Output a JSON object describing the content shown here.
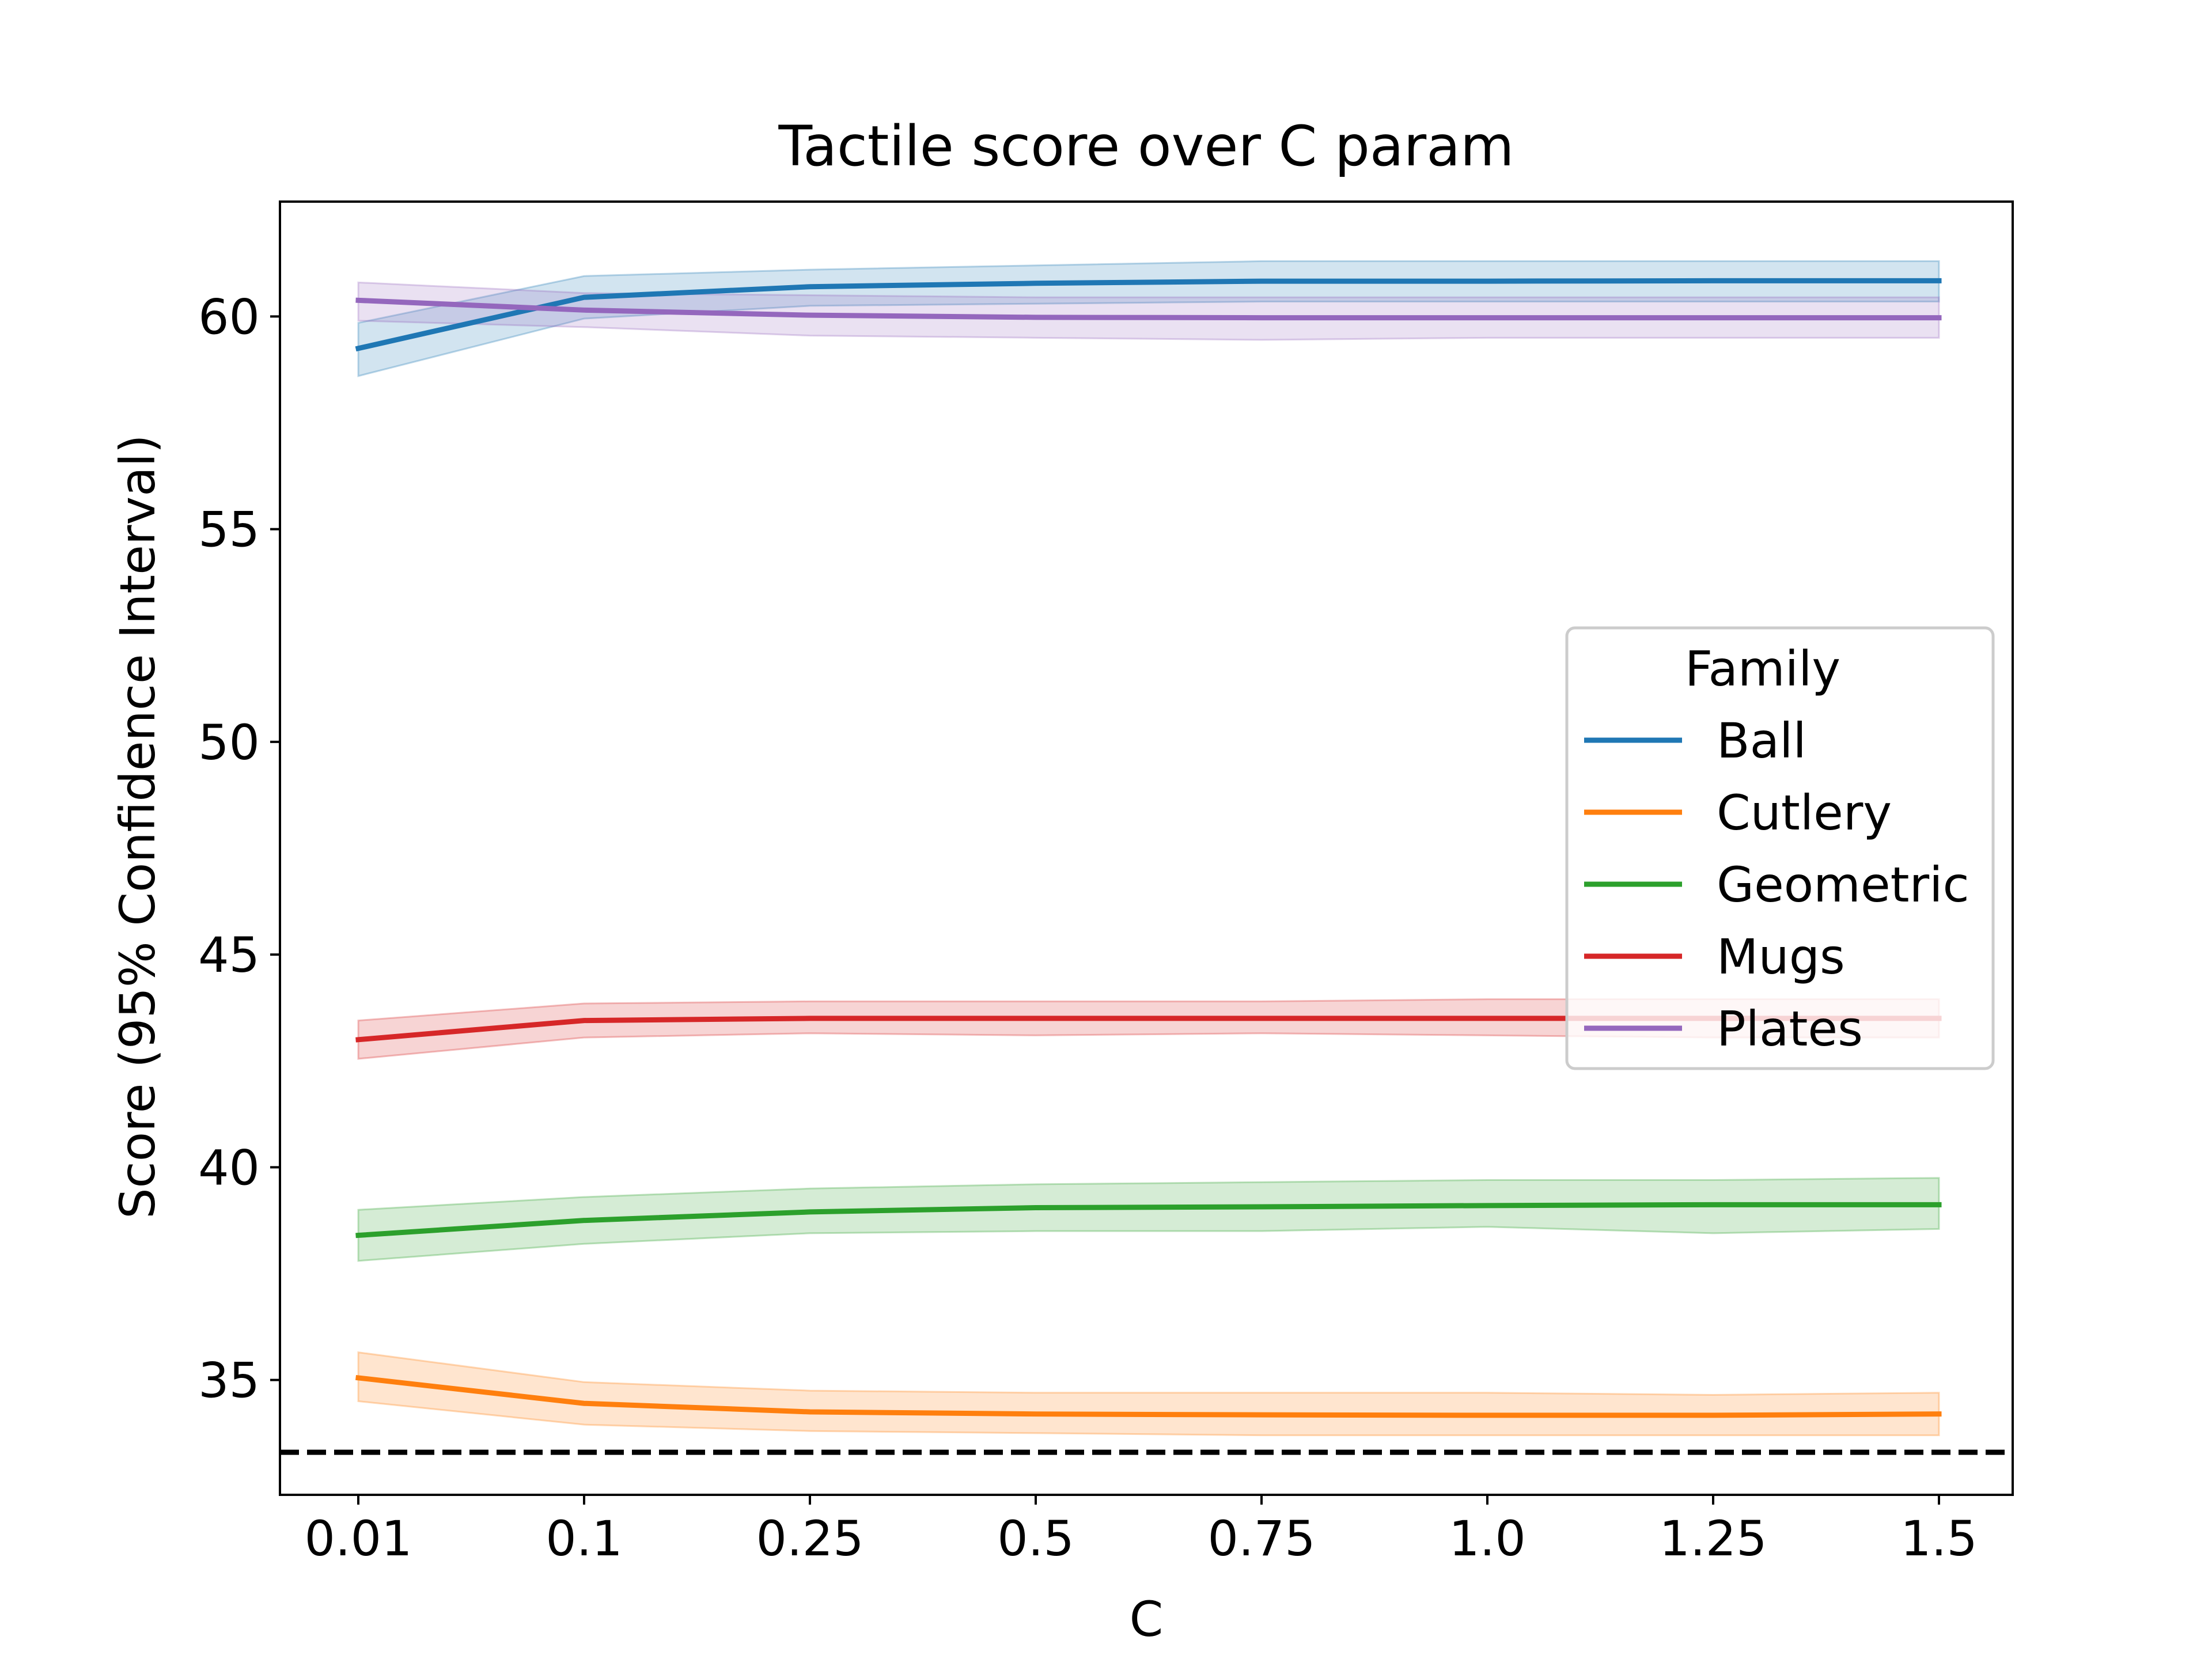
{
  "chart_data": {
    "type": "line",
    "title": "Tactile score over C param",
    "xlabel": "C",
    "ylabel": "Score (95% Confidence Interval)",
    "categories": [
      "0.01",
      "0.1",
      "0.25",
      "0.5",
      "0.75",
      "1.0",
      "1.25",
      "1.5"
    ],
    "ylim": [
      32.3,
      62.7
    ],
    "yticks": [
      35,
      40,
      45,
      50,
      55,
      60
    ],
    "grid": false,
    "legend": {
      "title": "Family",
      "placement": "center-right"
    },
    "reference_line": {
      "y": 33.3,
      "style": "dashed",
      "color": "#000000"
    },
    "series": [
      {
        "name": "Ball",
        "color": "#1f77b4",
        "values": [
          59.25,
          60.45,
          60.7,
          60.78,
          60.83,
          60.83,
          60.84,
          60.84
        ],
        "lower": [
          58.6,
          59.95,
          60.25,
          60.3,
          60.35,
          60.35,
          60.35,
          60.35
        ],
        "upper": [
          59.85,
          60.95,
          61.1,
          61.2,
          61.3,
          61.3,
          61.3,
          61.3
        ]
      },
      {
        "name": "Cutlery",
        "color": "#ff7f0e",
        "values": [
          35.05,
          34.45,
          34.25,
          34.2,
          34.18,
          34.17,
          34.17,
          34.2
        ],
        "lower": [
          34.5,
          33.95,
          33.8,
          33.75,
          33.7,
          33.7,
          33.7,
          33.7
        ],
        "upper": [
          35.65,
          34.95,
          34.75,
          34.7,
          34.7,
          34.7,
          34.65,
          34.7
        ]
      },
      {
        "name": "Geometric",
        "color": "#2ca02c",
        "values": [
          38.4,
          38.75,
          38.95,
          39.05,
          39.07,
          39.1,
          39.12,
          39.12
        ],
        "lower": [
          37.8,
          38.2,
          38.45,
          38.5,
          38.5,
          38.6,
          38.45,
          38.55
        ],
        "upper": [
          39.0,
          39.3,
          39.5,
          39.6,
          39.65,
          39.7,
          39.7,
          39.75
        ]
      },
      {
        "name": "Mugs",
        "color": "#d62728",
        "values": [
          43.0,
          43.45,
          43.5,
          43.5,
          43.5,
          43.5,
          43.5,
          43.5
        ],
        "lower": [
          42.55,
          43.05,
          43.15,
          43.1,
          43.15,
          43.1,
          43.05,
          43.05
        ],
        "upper": [
          43.45,
          43.85,
          43.9,
          43.9,
          43.9,
          43.95,
          43.95,
          43.95
        ]
      },
      {
        "name": "Plates",
        "color": "#9467bd",
        "values": [
          60.38,
          60.15,
          60.03,
          59.98,
          59.97,
          59.97,
          59.97,
          59.97
        ],
        "lower": [
          59.9,
          59.75,
          59.55,
          59.5,
          59.45,
          59.5,
          59.5,
          59.5
        ],
        "upper": [
          60.8,
          60.55,
          60.5,
          60.45,
          60.45,
          60.45,
          60.45,
          60.45
        ]
      }
    ]
  }
}
